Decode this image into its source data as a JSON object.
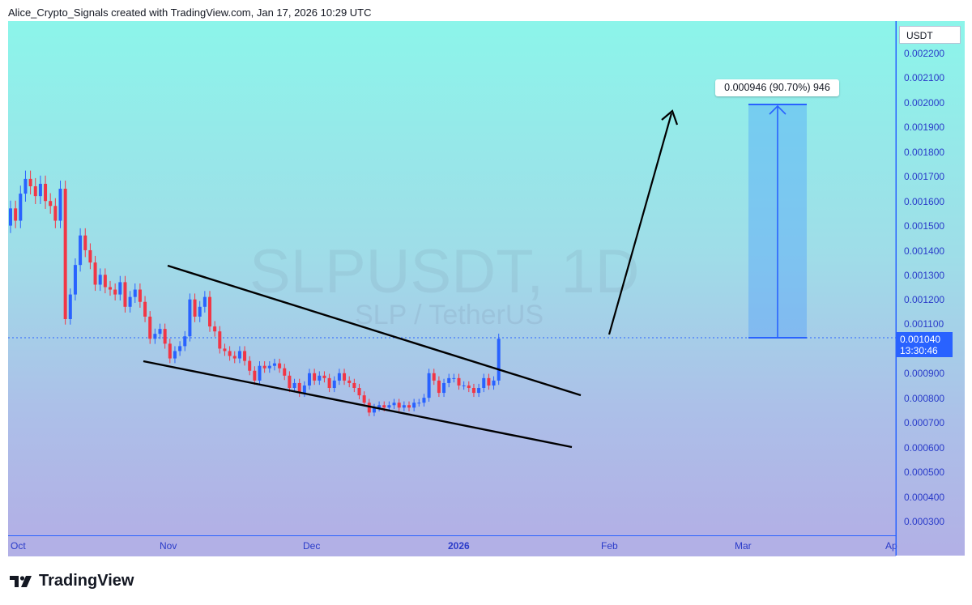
{
  "header": {
    "caption": "Alice_Crypto_Signals created with TradingView.com, Jan 17, 2026 10:29 UTC"
  },
  "watermark": {
    "symbol": "SLPUSDT, 1D",
    "description": "SLP / TetherUS"
  },
  "price_axis": {
    "unit": "USDT",
    "ticks": [
      "0.002200",
      "0.002100",
      "0.002000",
      "0.001900",
      "0.001800",
      "0.001700",
      "0.001600",
      "0.001500",
      "0.001400",
      "0.001300",
      "0.001200",
      "0.001100",
      "0.000900",
      "0.000800",
      "0.000700",
      "0.000600",
      "0.000500",
      "0.000400",
      "0.000300"
    ],
    "current_price": "0.001040",
    "countdown": "13:30:46"
  },
  "time_axis": {
    "ticks": [
      "Oct",
      "Nov",
      "Dec",
      "2026",
      "Feb",
      "Mar",
      "Ap"
    ]
  },
  "measure": {
    "label": "0.000946 (90.70%) 946"
  },
  "footer": {
    "brand": "TradingView"
  },
  "colors": {
    "up": "#2962ff",
    "down": "#f23645",
    "accent": "#2962ff"
  },
  "chart_data": {
    "type": "candlestick",
    "symbol": "SLPUSDT",
    "interval": "1D",
    "ylim": [
      0.00025,
      0.00227
    ],
    "x_ticks": [
      "Oct",
      "Nov",
      "Dec",
      "2026",
      "Feb",
      "Mar",
      "Ap"
    ],
    "y_ticks": [
      0.0022,
      0.0021,
      0.002,
      0.0019,
      0.0018,
      0.0017,
      0.0016,
      0.0015,
      0.0014,
      0.0013,
      0.0012,
      0.0011,
      0.0009,
      0.0008,
      0.0007,
      0.0006,
      0.0005,
      0.0004,
      0.0003
    ],
    "last_price": 0.00104,
    "closes": [
      0.00157,
      0.00152,
      0.00163,
      0.00169,
      0.00166,
      0.00162,
      0.00167,
      0.0016,
      0.00158,
      0.00152,
      0.00165,
      0.00112,
      0.00122,
      0.00134,
      0.00146,
      0.0014,
      0.00135,
      0.00126,
      0.0013,
      0.00125,
      0.00124,
      0.00122,
      0.00127,
      0.00117,
      0.00121,
      0.00124,
      0.00119,
      0.00113,
      0.00104,
      0.00106,
      0.00108,
      0.00102,
      0.00096,
      0.00099,
      0.00101,
      0.00105,
      0.0012,
      0.00113,
      0.00117,
      0.00121,
      0.00109,
      0.00107,
      0.001,
      0.00099,
      0.00097,
      0.00096,
      0.00099,
      0.00095,
      0.00091,
      0.00087,
      0.00093,
      0.00092,
      0.00093,
      0.00094,
      0.00092,
      0.00089,
      0.00084,
      0.00086,
      0.00082,
      0.00085,
      0.0009,
      0.00087,
      0.00089,
      0.00088,
      0.00084,
      0.00087,
      0.0009,
      0.00087,
      0.00086,
      0.00084,
      0.00081,
      0.00078,
      0.00074,
      0.00076,
      0.00077,
      0.00076,
      0.00077,
      0.00078,
      0.00076,
      0.00077,
      0.00076,
      0.00078,
      0.00078,
      0.0008,
      0.0009,
      0.00087,
      0.00082,
      0.00086,
      0.00088,
      0.00088,
      0.00085,
      0.00085,
      0.00084,
      0.00082,
      0.00084,
      0.00088,
      0.00085,
      0.00087,
      0.00104
    ],
    "trendlines": [
      {
        "name": "upper",
        "from": [
          0.00132,
          "Oct+~23d"
        ],
        "to": [
          0.00082,
          "Jan+~22d"
        ]
      },
      {
        "name": "lower",
        "from": [
          0.00095,
          "Oct+~24d"
        ],
        "to": [
          0.0006,
          "Jan+~21d"
        ]
      }
    ],
    "projection": {
      "from": 0.00104,
      "to": 0.00199,
      "change": "0.000946 (90.70%) 946"
    }
  }
}
